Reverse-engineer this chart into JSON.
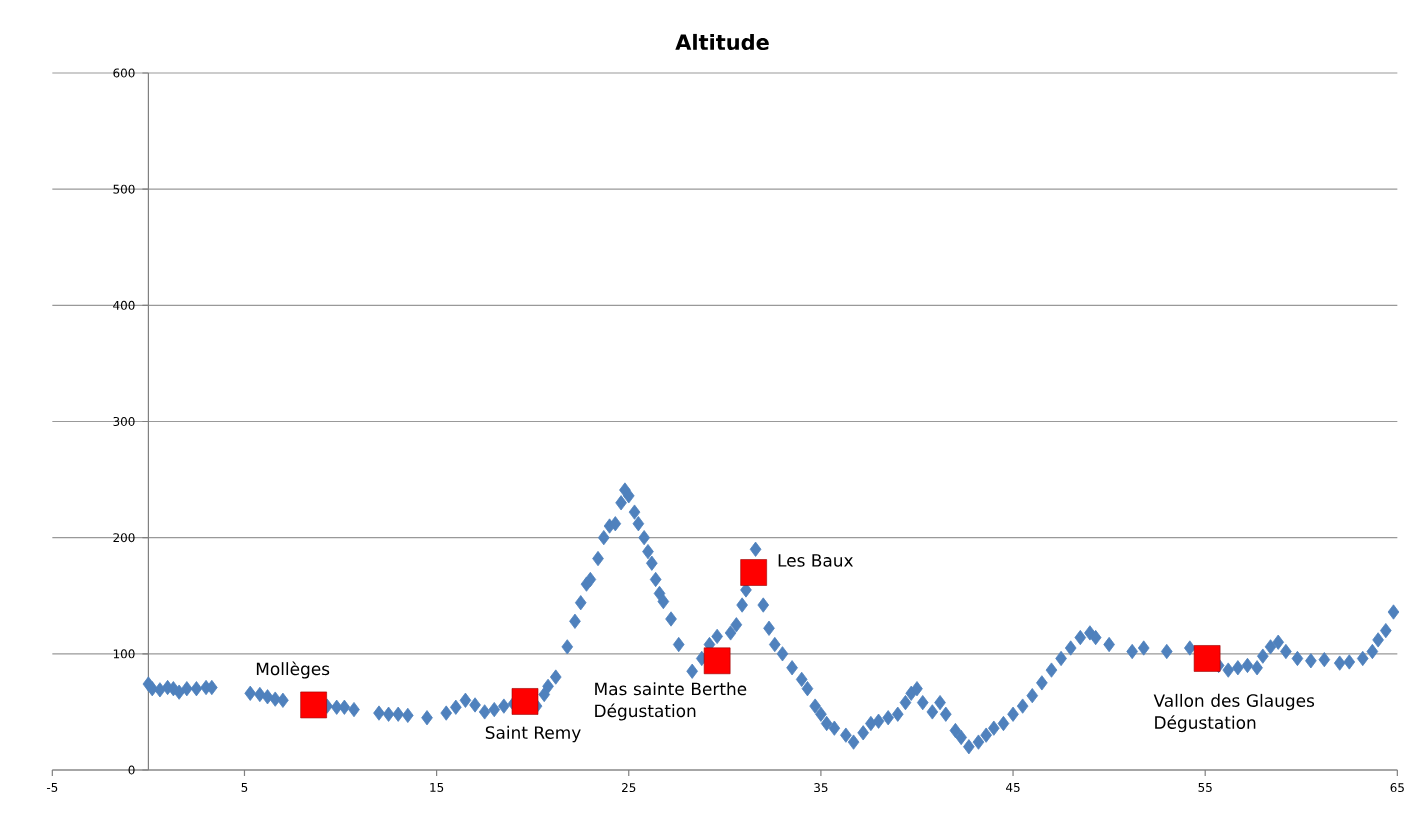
{
  "chart_data": {
    "type": "scatter",
    "title": "Altitude",
    "xlim": [
      -5,
      65
    ],
    "xticks": [
      -5,
      5,
      15,
      25,
      35,
      45,
      55,
      65
    ],
    "ylim": [
      0,
      600
    ],
    "yticks": [
      0,
      100,
      200,
      300,
      400,
      500,
      600
    ],
    "grid": "y",
    "series": [
      {
        "color": "#4f81bd",
        "marker": "diamond",
        "x": [
          0,
          0.2,
          0.6,
          1,
          1.3,
          1.6,
          2,
          2.5,
          3,
          3.3,
          5.3,
          5.8,
          6.2,
          6.6,
          7,
          9.3,
          9.8,
          10.2,
          10.7,
          12,
          12.5,
          13,
          13.5,
          14.5,
          15.5,
          16,
          16.5,
          17,
          17.5,
          18,
          18.5,
          19,
          20.2,
          20.6,
          20.8,
          21.2,
          21.8,
          22.2,
          22.5,
          22.8,
          23,
          23.4,
          23.7,
          24,
          24.3,
          24.6,
          24.8,
          25,
          25.3,
          25.5,
          25.8,
          26,
          26.2,
          26.4,
          26.6,
          26.8,
          27.2,
          27.6,
          28.3,
          28.8,
          29.2,
          29.6,
          30.3,
          30.6,
          30.9,
          31.1,
          31.6,
          32,
          32.3,
          32.6,
          33,
          33.5,
          34,
          34.3,
          34.7,
          35,
          35.3,
          35.7,
          36.3,
          36.7,
          37.2,
          37.6,
          38,
          38.5,
          39,
          39.4,
          39.7,
          40,
          40.3,
          40.8,
          41.2,
          41.5,
          42,
          42.3,
          42.7,
          43.2,
          43.6,
          44,
          44.5,
          45,
          45.5,
          46,
          46.5,
          47,
          47.5,
          48,
          48.5,
          49,
          49.3,
          50,
          51.2,
          51.8,
          53,
          54.2,
          55.7,
          56.2,
          56.7,
          57.2,
          57.7,
          58,
          58.4,
          58.8,
          59.2,
          59.8,
          60.5,
          61.2,
          62,
          62.5,
          63.2,
          63.7,
          64,
          64.4,
          64.8
        ],
        "values": [
          74,
          70,
          69,
          71,
          70,
          67,
          70,
          70,
          71,
          71,
          66,
          65,
          63,
          61,
          60,
          55,
          54,
          54,
          52,
          49,
          48,
          48,
          47,
          45,
          49,
          54,
          60,
          56,
          50,
          52,
          55,
          57,
          55,
          65,
          72,
          80,
          106,
          128,
          144,
          160,
          164,
          182,
          200,
          210,
          212,
          230,
          241,
          236,
          222,
          212,
          200,
          188,
          178,
          164,
          152,
          145,
          130,
          108,
          85,
          96,
          108,
          115,
          118,
          125,
          142,
          155,
          190,
          142,
          122,
          108,
          100,
          88,
          78,
          70,
          55,
          48,
          40,
          36,
          30,
          24,
          32,
          40,
          42,
          45,
          48,
          58,
          66,
          70,
          58,
          50,
          58,
          48,
          34,
          28,
          20,
          24,
          30,
          36,
          40,
          48,
          55,
          64,
          75,
          86,
          96,
          105,
          114,
          118,
          114,
          108,
          102,
          105,
          102,
          105,
          90,
          86,
          88,
          90,
          88,
          98,
          106,
          110,
          102,
          96,
          94,
          95,
          92,
          93,
          96,
          102,
          112,
          120,
          136
        ]
      },
      {
        "color": "#ff0000",
        "marker": "square",
        "x": [
          8.6,
          19.6,
          29.6,
          31.5,
          55.1
        ],
        "values": [
          56,
          59,
          94,
          170,
          96
        ]
      }
    ],
    "annotations": [
      {
        "text": "Mollèges",
        "x": 8.6,
        "y": 56
      },
      {
        "text": "Saint Remy",
        "x": 19.6,
        "y": 59
      },
      {
        "text": "Mas sainte Berthe Dégustation",
        "x": 29.6,
        "y": 94
      },
      {
        "text": "Les Baux",
        "x": 31.5,
        "y": 170
      },
      {
        "text": "Vallon des Glauges Dégustation",
        "x": 55.1,
        "y": 96
      }
    ]
  }
}
